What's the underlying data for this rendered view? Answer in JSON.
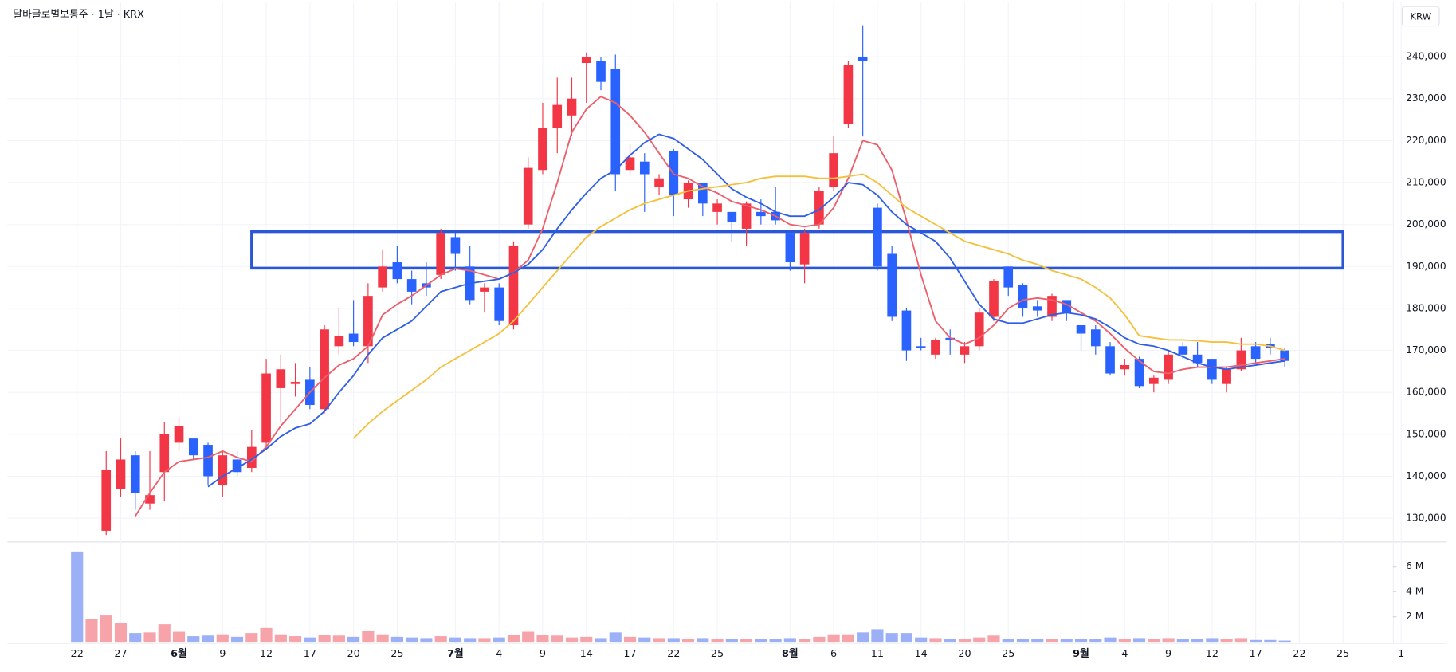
{
  "chart_data": {
    "type": "candlestick",
    "title": "달바글로벌보통주 · 1날 · KRX",
    "unit_label": "KRW",
    "categories": [
      "22",
      null,
      null,
      "27",
      null,
      null,
      null,
      "6월",
      null,
      null,
      "9",
      null,
      null,
      "12",
      null,
      null,
      "17",
      null,
      null,
      "20",
      null,
      null,
      "25",
      null,
      null,
      null,
      "7월",
      null,
      null,
      "4",
      null,
      null,
      "9",
      null,
      null,
      "14",
      null,
      null,
      "17",
      null,
      null,
      "22",
      null,
      null,
      "25",
      null,
      null,
      null,
      null,
      "8월",
      null,
      null,
      "6",
      null,
      null,
      "11",
      null,
      null,
      "14",
      null,
      null,
      "20",
      null,
      null,
      "25",
      null,
      null,
      null,
      null,
      "9월",
      null,
      null,
      "4",
      null,
      null,
      "9",
      null,
      null,
      "12",
      null,
      null,
      "17",
      null,
      null,
      "22",
      null,
      null,
      "25",
      null,
      null,
      null,
      "1"
    ],
    "open": [
      null,
      null,
      127000,
      137000,
      145000,
      133500,
      141000,
      148000,
      149000,
      147500,
      138000,
      144000,
      142000,
      148000,
      161000,
      162000,
      163000,
      156000,
      171000,
      174000,
      171000,
      185000,
      191000,
      187000,
      186000,
      188000,
      197000,
      190000,
      184000,
      185000,
      176000,
      200000,
      213000,
      223000,
      226000,
      238500,
      239000,
      237000,
      213000,
      215000,
      209000,
      217500,
      206000,
      210000,
      203000,
      203000,
      199000,
      203000,
      203000,
      198000,
      190500,
      200000,
      209000,
      224000,
      240000,
      204000,
      193000,
      179500,
      171000,
      169000,
      173000,
      169000,
      171000,
      178000,
      190000,
      185500,
      180500,
      178000,
      182000,
      176000,
      175000,
      171000,
      165500,
      168000,
      162000,
      163000,
      171000,
      169000,
      168000,
      162000,
      165500,
      171000,
      171500,
      170000,
      null,
      null,
      null,
      null,
      null,
      null,
      null,
      null
    ],
    "high": [
      null,
      null,
      146000,
      149000,
      146000,
      146000,
      153000,
      154000,
      149000,
      148000,
      146000,
      146000,
      151000,
      168000,
      169000,
      167000,
      166000,
      176000,
      180000,
      182000,
      186000,
      194000,
      195000,
      189000,
      191000,
      199000,
      198000,
      195000,
      186000,
      186000,
      196000,
      216000,
      229000,
      235000,
      235000,
      241000,
      240000,
      240500,
      219000,
      217000,
      212000,
      218000,
      210500,
      210000,
      206000,
      203000,
      205500,
      206000,
      209000,
      198000,
      199000,
      209000,
      221000,
      239000,
      247500,
      205000,
      195000,
      180000,
      173000,
      173000,
      175000,
      172000,
      180000,
      187000,
      190000,
      186000,
      182000,
      183500,
      182000,
      176000,
      176000,
      172000,
      168000,
      168500,
      164000,
      170000,
      172000,
      172000,
      168000,
      166000,
      173000,
      172000,
      173000,
      170500,
      null,
      null,
      null,
      null,
      null,
      null,
      null,
      null
    ],
    "low": [
      null,
      null,
      126000,
      135000,
      132000,
      132000,
      134000,
      146000,
      144000,
      138000,
      135000,
      140000,
      141000,
      147000,
      153000,
      159000,
      156000,
      155000,
      169000,
      171000,
      167000,
      184000,
      186000,
      181000,
      183000,
      187000,
      189000,
      181000,
      179000,
      176000,
      175000,
      199000,
      212000,
      217000,
      221000,
      229000,
      232000,
      208000,
      212000,
      203000,
      207000,
      202000,
      204000,
      202000,
      200000,
      196000,
      195000,
      200000,
      200000,
      189000,
      186000,
      199000,
      208000,
      223000,
      221000,
      189000,
      177000,
      167500,
      170000,
      168000,
      169000,
      167000,
      170000,
      177000,
      183000,
      178000,
      178000,
      177000,
      177000,
      170000,
      169000,
      164000,
      164000,
      161000,
      160000,
      162000,
      168000,
      166000,
      162000,
      160000,
      165000,
      167000,
      169000,
      166000,
      null,
      null,
      null,
      null,
      null,
      null,
      null,
      null
    ],
    "close": [
      null,
      null,
      141500,
      144000,
      136000,
      135500,
      150000,
      152000,
      145000,
      140000,
      145000,
      141000,
      147000,
      164500,
      165500,
      162500,
      157000,
      175000,
      173500,
      172000,
      183000,
      190000,
      187000,
      184000,
      185000,
      198000,
      193000,
      182000,
      185000,
      177000,
      195000,
      213500,
      223000,
      228500,
      230000,
      240000,
      234000,
      212000,
      216000,
      212000,
      211000,
      207000,
      210000,
      205000,
      205000,
      200500,
      205000,
      202000,
      201000,
      191000,
      198000,
      208000,
      217000,
      238000,
      239000,
      190000,
      178000,
      170000,
      170500,
      172500,
      172500,
      171000,
      179000,
      186500,
      185000,
      180000,
      179500,
      183000,
      179000,
      174000,
      171000,
      164500,
      166500,
      161500,
      163500,
      169000,
      169000,
      167000,
      163000,
      165500,
      170000,
      168000,
      170500,
      167500,
      null,
      null,
      null,
      null,
      null,
      null,
      null,
      null
    ],
    "up_color": "#f23645",
    "down_color": "#2962ff",
    "ylim": [
      124460,
      252400
    ],
    "yticks": [
      {
        "value": 130000,
        "label": "130,000"
      },
      {
        "value": 140000,
        "label": "140,000"
      },
      {
        "value": 150000,
        "label": "150,000"
      },
      {
        "value": 160000,
        "label": "160,000"
      },
      {
        "value": 170000,
        "label": "170,000"
      },
      {
        "value": 180000,
        "label": "180,000"
      },
      {
        "value": 190000,
        "label": "190,000"
      },
      {
        "value": 200000,
        "label": "200,000"
      },
      {
        "value": 210000,
        "label": "210,000"
      },
      {
        "value": 220000,
        "label": "220,000"
      },
      {
        "value": 230000,
        "label": "230,000"
      },
      {
        "value": 240000,
        "label": "240,000"
      }
    ],
    "grid": true,
    "moving_averages": [
      {
        "color": "#ec5f6b",
        "values": [
          null,
          null,
          null,
          null,
          130500,
          136000,
          141000,
          143500,
          144000,
          144500,
          146000,
          144500,
          143500,
          147000,
          152000,
          156000,
          160000,
          163500,
          166500,
          168000,
          171000,
          178500,
          181000,
          183000,
          185500,
          188000,
          189500,
          189000,
          188000,
          187000,
          188500,
          191500,
          199000,
          210000,
          222000,
          227500,
          230500,
          229000,
          226000,
          222000,
          217000,
          212000,
          211000,
          209000,
          207500,
          205500,
          204500,
          203500,
          202000,
          200000,
          199500,
          200000,
          204000,
          211000,
          220000,
          219000,
          213000,
          201000,
          188000,
          177000,
          173000,
          171500,
          173000,
          176000,
          180000,
          182000,
          182500,
          182000,
          181000,
          179000,
          177000,
          174000,
          170500,
          167500,
          165000,
          164500,
          165500,
          166000,
          166000,
          166000,
          166500,
          167000,
          167500,
          168000,
          null,
          null,
          null,
          null,
          null,
          null,
          null,
          null
        ]
      },
      {
        "color": "#2f5fe6",
        "values": [
          null,
          null,
          null,
          null,
          null,
          null,
          null,
          null,
          null,
          137500,
          140000,
          142000,
          144000,
          146500,
          149500,
          151500,
          152500,
          155500,
          160000,
          164000,
          169000,
          173000,
          175000,
          177000,
          180500,
          184000,
          185000,
          186000,
          186500,
          187000,
          188500,
          190500,
          194000,
          199000,
          203500,
          207500,
          211000,
          213000,
          216500,
          219500,
          221500,
          220500,
          218000,
          215500,
          212000,
          208500,
          206500,
          205000,
          203000,
          202000,
          202000,
          203500,
          206500,
          210000,
          209500,
          207000,
          203000,
          200000,
          198000,
          196000,
          192000,
          186500,
          181000,
          177500,
          176500,
          176500,
          177500,
          178500,
          179000,
          178500,
          177500,
          175500,
          173000,
          171500,
          171000,
          170000,
          168500,
          167000,
          166000,
          165500,
          166000,
          166500,
          167000,
          167500,
          null,
          null,
          null,
          null,
          null,
          null,
          null,
          null
        ]
      },
      {
        "color": "#f4c13f",
        "values": [
          null,
          null,
          null,
          null,
          null,
          null,
          null,
          null,
          null,
          null,
          null,
          null,
          null,
          null,
          null,
          null,
          null,
          null,
          null,
          149000,
          152500,
          155500,
          158000,
          160500,
          163000,
          166000,
          168000,
          170000,
          172000,
          174000,
          177000,
          181000,
          185000,
          189000,
          193000,
          197000,
          199500,
          201500,
          203500,
          205000,
          206000,
          207000,
          208000,
          208500,
          209000,
          209500,
          210000,
          211000,
          211500,
          211500,
          211500,
          211000,
          211000,
          211500,
          212000,
          210000,
          207000,
          204000,
          202000,
          200000,
          198000,
          196000,
          195000,
          194000,
          193000,
          191500,
          190500,
          189000,
          188000,
          187000,
          185000,
          182500,
          178500,
          173500,
          173000,
          172500,
          172500,
          172300,
          172000,
          172000,
          171500,
          171500,
          171000,
          170000,
          null,
          null,
          null,
          null,
          null,
          null,
          null,
          null
        ]
      }
    ],
    "volume": {
      "values": [
        7200000,
        1800000,
        2100000,
        1500000,
        700000,
        750000,
        1400000,
        800000,
        450000,
        500000,
        600000,
        400000,
        700000,
        1100000,
        600000,
        450000,
        350000,
        550000,
        500000,
        400000,
        900000,
        600000,
        400000,
        350000,
        300000,
        450000,
        350000,
        300000,
        300000,
        350000,
        550000,
        800000,
        550000,
        500000,
        350000,
        400000,
        300000,
        750000,
        400000,
        350000,
        300000,
        300000,
        250000,
        300000,
        200000,
        200000,
        250000,
        200000,
        250000,
        300000,
        250000,
        400000,
        600000,
        600000,
        750000,
        1000000,
        700000,
        700000,
        350000,
        300000,
        250000,
        250000,
        350000,
        500000,
        250000,
        250000,
        200000,
        200000,
        200000,
        250000,
        250000,
        350000,
        250000,
        300000,
        250000,
        300000,
        250000,
        250000,
        300000,
        250000,
        300000,
        150000,
        150000,
        100000,
        null,
        null,
        null,
        null,
        null,
        null,
        null,
        null
      ],
      "colors": [
        "#9cb0f7",
        "#f7a3aa",
        "#f7a3aa",
        "#f7a3aa",
        "#9cb0f7",
        "#f7a3aa",
        "#f7a3aa",
        "#f7a3aa",
        "#9cb0f7",
        "#9cb0f7",
        "#f7a3aa",
        "#9cb0f7",
        "#f7a3aa",
        "#f7a3aa",
        "#f7a3aa",
        "#f7a3aa",
        "#9cb0f7",
        "#f7a3aa",
        "#f7a3aa",
        "#9cb0f7",
        "#f7a3aa",
        "#f7a3aa",
        "#9cb0f7",
        "#9cb0f7",
        "#9cb0f7",
        "#f7a3aa",
        "#9cb0f7",
        "#9cb0f7",
        "#f7a3aa",
        "#9cb0f7",
        "#f7a3aa",
        "#f7a3aa",
        "#f7a3aa",
        "#f7a3aa",
        "#f7a3aa",
        "#f7a3aa",
        "#9cb0f7",
        "#9cb0f7",
        "#f7a3aa",
        "#9cb0f7",
        "#f7a3aa",
        "#9cb0f7",
        "#f7a3aa",
        "#9cb0f7",
        "#f7a3aa",
        "#9cb0f7",
        "#f7a3aa",
        "#9cb0f7",
        "#9cb0f7",
        "#9cb0f7",
        "#f7a3aa",
        "#f7a3aa",
        "#f7a3aa",
        "#f7a3aa",
        "#9cb0f7",
        "#9cb0f7",
        "#9cb0f7",
        "#9cb0f7",
        "#9cb0f7",
        "#f7a3aa",
        "#9cb0f7",
        "#f7a3aa",
        "#f7a3aa",
        "#f7a3aa",
        "#9cb0f7",
        "#9cb0f7",
        "#9cb0f7",
        "#f7a3aa",
        "#9cb0f7",
        "#9cb0f7",
        "#9cb0f7",
        "#9cb0f7",
        "#f7a3aa",
        "#9cb0f7",
        "#f7a3aa",
        "#f7a3aa",
        "#9cb0f7",
        "#9cb0f7",
        "#9cb0f7",
        "#f7a3aa",
        "#f7a3aa",
        "#9cb0f7",
        "#9cb0f7",
        "#9cb0f7"
      ],
      "ylim": [
        0,
        7850000
      ],
      "yticks": [
        {
          "value": 2000000,
          "label": "2 M"
        },
        {
          "value": 4000000,
          "label": "4 M"
        },
        {
          "value": 6000000,
          "label": "6 M"
        }
      ]
    },
    "highlight": {
      "x": [
        12,
        87
      ],
      "y": [
        189600,
        198300
      ],
      "color": "#2a56d8"
    }
  }
}
